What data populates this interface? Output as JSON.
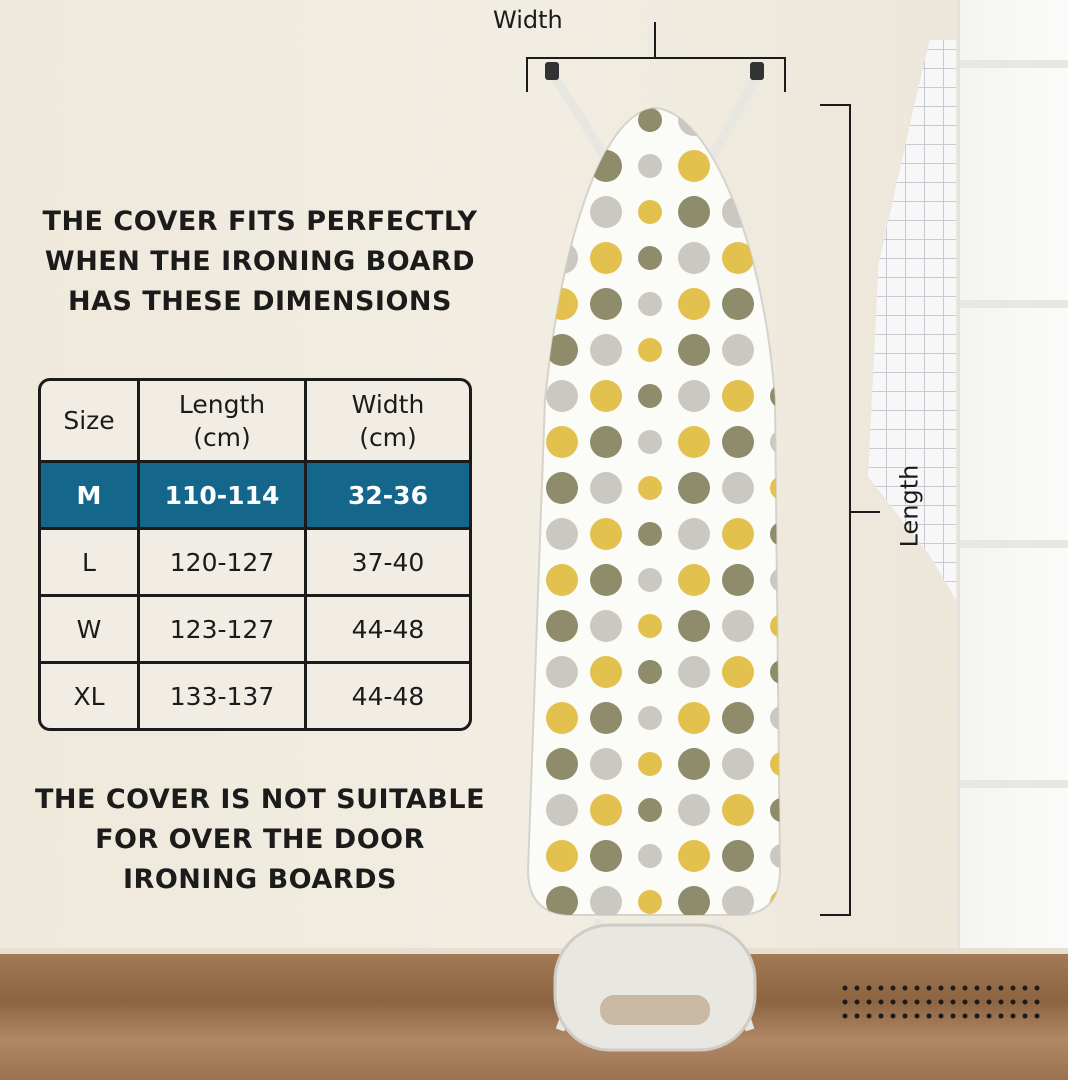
{
  "headline_top": [
    "THE COVER FITS PERFECTLY",
    "WHEN THE IRONING BOARD",
    "HAS THESE DIMENSIONS"
  ],
  "headline_bottom": [
    "THE COVER IS NOT SUITABLE",
    "FOR OVER THE DOOR",
    "IRONING BOARDS"
  ],
  "table": {
    "headers": [
      [
        "Size"
      ],
      [
        "Length",
        "(cm)"
      ],
      [
        "Width",
        "(cm)"
      ]
    ],
    "rows": [
      [
        "M",
        "110-114",
        "32-36"
      ],
      [
        "L",
        "120-127",
        "37-40"
      ],
      [
        "W",
        "123-127",
        "44-48"
      ],
      [
        "XL",
        "133-137",
        "44-48"
      ]
    ],
    "highlight_color": "#14668b"
  },
  "dimension_labels": {
    "width": "Width",
    "length": "Length"
  },
  "pattern_colors": [
    "#e2c14f",
    "#8f8c6b",
    "#cbc8c1"
  ]
}
